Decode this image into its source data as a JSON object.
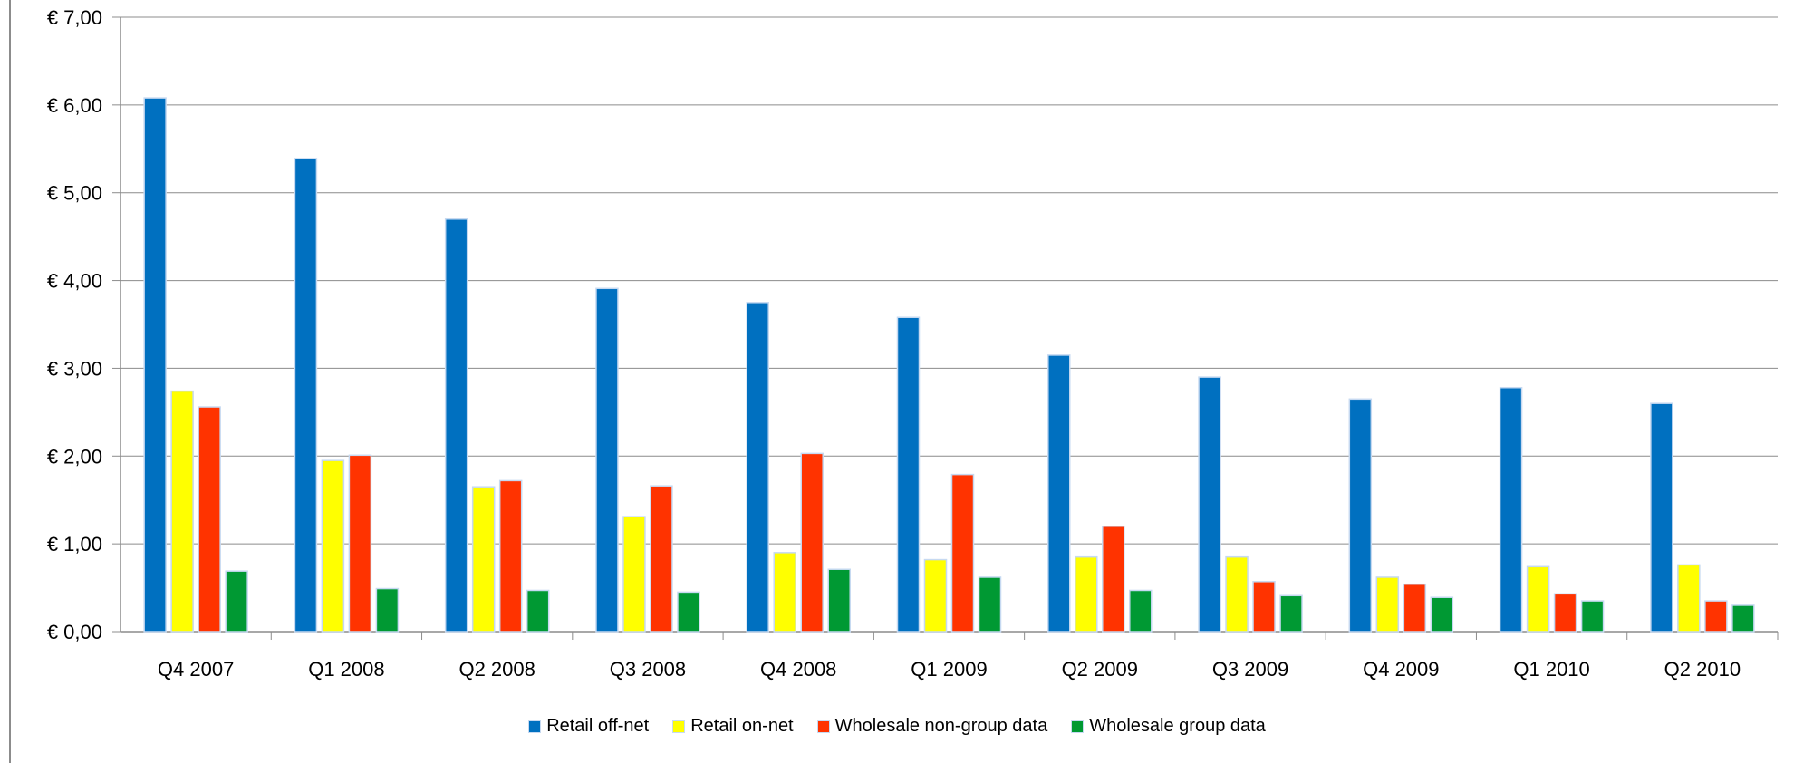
{
  "chart_data": {
    "type": "bar",
    "categories": [
      "Q4 2007",
      "Q1 2008",
      "Q2 2008",
      "Q3 2008",
      "Q4 2008",
      "Q1 2009",
      "Q2 2009",
      "Q3 2009",
      "Q4 2009",
      "Q1 2010",
      "Q2 2010"
    ],
    "y_ticks": [
      "€ 0,00",
      "€ 1,00",
      "€ 2,00",
      "€ 3,00",
      "€ 4,00",
      "€ 5,00",
      "€ 6,00",
      "€ 7,00"
    ],
    "ylim": [
      0,
      7
    ],
    "grid": true,
    "legend_position": "bottom",
    "series": [
      {
        "name": "Retail off-net",
        "color": "#0070C0",
        "values": [
          6.08,
          5.39,
          4.7,
          3.91,
          3.75,
          3.58,
          3.15,
          2.9,
          2.65,
          2.78,
          2.6
        ]
      },
      {
        "name": "Retail on-net",
        "color": "#FFFF00",
        "values": [
          2.74,
          1.95,
          1.65,
          1.31,
          0.9,
          0.82,
          0.85,
          0.85,
          0.62,
          0.74,
          0.76
        ]
      },
      {
        "name": "Wholesale non-group data",
        "color": "#FF3300",
        "values": [
          2.56,
          2.01,
          1.72,
          1.66,
          2.03,
          1.79,
          1.2,
          0.57,
          0.54,
          0.43,
          0.35
        ]
      },
      {
        "name": "Wholesale group data",
        "color": "#009933",
        "values": [
          0.69,
          0.49,
          0.47,
          0.45,
          0.71,
          0.62,
          0.47,
          0.41,
          0.39,
          0.35,
          0.3
        ]
      }
    ]
  }
}
